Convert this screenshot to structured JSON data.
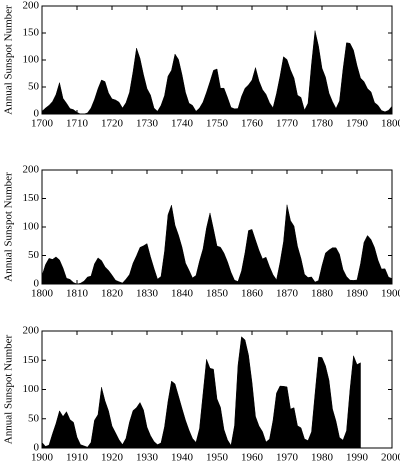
{
  "chart_data": [
    {
      "type": "area",
      "y_label": "Annual Sunspot Number",
      "color": "#000000",
      "x": [
        1700,
        1701,
        1702,
        1703,
        1704,
        1705,
        1706,
        1707,
        1708,
        1709,
        1710,
        1711,
        1712,
        1713,
        1714,
        1715,
        1716,
        1717,
        1718,
        1719,
        1720,
        1721,
        1722,
        1723,
        1724,
        1725,
        1726,
        1727,
        1728,
        1729,
        1730,
        1731,
        1732,
        1733,
        1734,
        1735,
        1736,
        1737,
        1738,
        1739,
        1740,
        1741,
        1742,
        1743,
        1744,
        1745,
        1746,
        1747,
        1748,
        1749,
        1750,
        1751,
        1752,
        1753,
        1754,
        1755,
        1756,
        1757,
        1758,
        1759,
        1760,
        1761,
        1762,
        1763,
        1764,
        1765,
        1766,
        1767,
        1768,
        1769,
        1770,
        1771,
        1772,
        1773,
        1774,
        1775,
        1776,
        1777,
        1778,
        1779,
        1780,
        1781,
        1782,
        1783,
        1784,
        1785,
        1786,
        1787,
        1788,
        1789,
        1790,
        1791,
        1792,
        1793,
        1794,
        1795,
        1796,
        1797,
        1798,
        1799,
        1800
      ],
      "values": [
        5,
        11,
        16,
        23,
        36,
        58,
        29,
        20,
        10,
        8,
        3,
        0,
        0,
        2,
        11,
        27,
        47,
        63,
        60,
        39,
        28,
        26,
        22,
        11,
        21,
        40,
        78,
        122,
        103,
        73,
        47,
        35,
        11,
        5,
        16,
        34,
        70,
        81,
        111,
        101,
        73,
        40,
        20,
        16,
        5,
        11,
        22,
        40,
        60,
        80.9,
        83.4,
        47.7,
        47.8,
        30.7,
        12.2,
        9.6,
        10.2,
        32.4,
        47.6,
        54,
        62.9,
        85.9,
        61.2,
        45.1,
        36.4,
        20.9,
        11.4,
        37.8,
        69.8,
        106.1,
        100.8,
        81.6,
        66.5,
        34.8,
        30.6,
        7,
        19.8,
        92.5,
        154.4,
        125.9,
        84.8,
        68.1,
        38.5,
        22.8,
        10.2,
        24.1,
        82.9,
        132,
        130.9,
        118.1,
        89.9,
        66.6,
        60,
        46.9,
        41,
        21.3,
        16,
        6.4,
        4.1,
        6.8,
        14.5
      ],
      "xlim": [
        1700,
        1800
      ],
      "xticks": [
        1700,
        1710,
        1720,
        1730,
        1740,
        1750,
        1760,
        1770,
        1780,
        1790,
        1800
      ],
      "ylim": [
        0,
        200
      ],
      "yticks": [
        0,
        50,
        100,
        150,
        200
      ]
    },
    {
      "type": "area",
      "y_label": "Annual Sunspot Number",
      "color": "#000000",
      "x": [
        1800,
        1801,
        1802,
        1803,
        1804,
        1805,
        1806,
        1807,
        1808,
        1809,
        1810,
        1811,
        1812,
        1813,
        1814,
        1815,
        1816,
        1817,
        1818,
        1819,
        1820,
        1821,
        1822,
        1823,
        1824,
        1825,
        1826,
        1827,
        1828,
        1829,
        1830,
        1831,
        1832,
        1833,
        1834,
        1835,
        1836,
        1837,
        1838,
        1839,
        1840,
        1841,
        1842,
        1843,
        1844,
        1845,
        1846,
        1847,
        1848,
        1849,
        1850,
        1851,
        1852,
        1853,
        1854,
        1855,
        1856,
        1857,
        1858,
        1859,
        1860,
        1861,
        1862,
        1863,
        1864,
        1865,
        1866,
        1867,
        1868,
        1869,
        1870,
        1871,
        1872,
        1873,
        1874,
        1875,
        1876,
        1877,
        1878,
        1879,
        1880,
        1881,
        1882,
        1883,
        1884,
        1885,
        1886,
        1887,
        1888,
        1889,
        1890,
        1891,
        1892,
        1893,
        1894,
        1895,
        1896,
        1897,
        1898,
        1899,
        1900
      ],
      "values": [
        14.5,
        34,
        45,
        43.1,
        47.5,
        42.2,
        28.1,
        10.1,
        8.1,
        2.5,
        0,
        1.4,
        5,
        12.2,
        13.9,
        35.4,
        45.8,
        41.1,
        30.1,
        23.9,
        15.6,
        6.6,
        4,
        1.8,
        8.5,
        16.6,
        36.3,
        49.6,
        64.2,
        67,
        70.9,
        47.8,
        27.5,
        8.5,
        13.2,
        56.9,
        121.5,
        138.3,
        103.2,
        85.7,
        64.6,
        36.7,
        24.2,
        10.7,
        15,
        40.1,
        61.5,
        98.5,
        124.7,
        96.3,
        66.6,
        64.5,
        54.1,
        39,
        20.6,
        6.7,
        4.3,
        22.7,
        54.8,
        93.8,
        95.8,
        77.2,
        59.1,
        44,
        47,
        30.5,
        16.3,
        7.3,
        37.6,
        74,
        139,
        111.2,
        101.6,
        66.2,
        44.7,
        17,
        11.3,
        12.4,
        3.4,
        6,
        32.3,
        54.3,
        59.7,
        63.7,
        63.5,
        52.2,
        25.4,
        13.1,
        6.8,
        6.3,
        7.1,
        35.6,
        73,
        85.1,
        78,
        64,
        41.8,
        26.2,
        26.7,
        12.1,
        9.5
      ],
      "xlim": [
        1800,
        1900
      ],
      "xticks": [
        1800,
        1810,
        1820,
        1830,
        1840,
        1850,
        1860,
        1870,
        1880,
        1890,
        1900
      ],
      "ylim": [
        0,
        200
      ],
      "yticks": [
        0,
        50,
        100,
        150,
        200
      ]
    },
    {
      "type": "area",
      "y_label": "Annual Sunspot Number",
      "color": "#000000",
      "x": [
        1900,
        1901,
        1902,
        1903,
        1904,
        1905,
        1906,
        1907,
        1908,
        1909,
        1910,
        1911,
        1912,
        1913,
        1914,
        1915,
        1916,
        1917,
        1918,
        1919,
        1920,
        1921,
        1922,
        1923,
        1924,
        1925,
        1926,
        1927,
        1928,
        1929,
        1930,
        1931,
        1932,
        1933,
        1934,
        1935,
        1936,
        1937,
        1938,
        1939,
        1940,
        1941,
        1942,
        1943,
        1944,
        1945,
        1946,
        1947,
        1948,
        1949,
        1950,
        1951,
        1952,
        1953,
        1954,
        1955,
        1956,
        1957,
        1958,
        1959,
        1960,
        1961,
        1962,
        1963,
        1964,
        1965,
        1966,
        1967,
        1968,
        1969,
        1970,
        1971,
        1972,
        1973,
        1974,
        1975,
        1976,
        1977,
        1978,
        1979,
        1980,
        1981,
        1982,
        1983,
        1984,
        1985,
        1986,
        1987,
        1988,
        1989,
        1990,
        1991
      ],
      "values": [
        9.5,
        2.7,
        5,
        24.4,
        42,
        63.5,
        53.8,
        62,
        48.5,
        43.9,
        18.6,
        5.7,
        3.6,
        1.4,
        9.6,
        47.4,
        57.1,
        103.9,
        80.6,
        63.6,
        37.6,
        26.1,
        14.2,
        5.8,
        16.7,
        44.3,
        63.9,
        69,
        77.8,
        64.9,
        35.7,
        21.2,
        11.1,
        5.7,
        8.7,
        36.1,
        79.7,
        114.4,
        109.6,
        88.8,
        67.8,
        47.5,
        30.6,
        16.3,
        9.6,
        33.2,
        92.6,
        151.6,
        136.3,
        134.7,
        83.9,
        69.4,
        31.5,
        13.9,
        4.4,
        38,
        141.7,
        190.2,
        184.8,
        159,
        112.3,
        53.9,
        37.6,
        27.9,
        10.2,
        15.1,
        47,
        93.8,
        105.9,
        105.5,
        104.5,
        66.6,
        68.9,
        38,
        34.5,
        15.5,
        12.6,
        27.5,
        92.5,
        155.4,
        154.6,
        140.4,
        115.9,
        66.6,
        45.9,
        17.9,
        13.4,
        29.4,
        100.2,
        157.6,
        142.6,
        145.7
      ],
      "xlim": [
        1900,
        2000
      ],
      "xticks": [
        1900,
        1910,
        1920,
        1930,
        1940,
        1950,
        1960,
        1970,
        1980,
        1990,
        2000
      ],
      "ylim": [
        0,
        200
      ],
      "yticks": [
        0,
        50,
        100,
        150,
        200
      ]
    }
  ]
}
